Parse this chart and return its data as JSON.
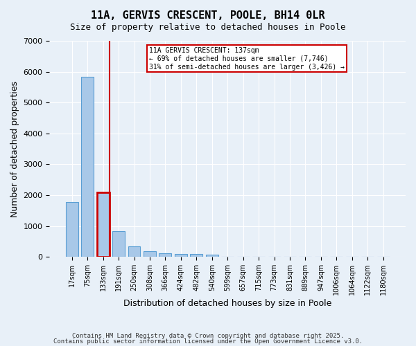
{
  "title_line1": "11A, GERVIS CRESCENT, POOLE, BH14 0LR",
  "title_line2": "Size of property relative to detached houses in Poole",
  "xlabel": "Distribution of detached houses by size in Poole",
  "ylabel": "Number of detached properties",
  "categories": [
    "17sqm",
    "75sqm",
    "133sqm",
    "191sqm",
    "250sqm",
    "308sqm",
    "366sqm",
    "424sqm",
    "482sqm",
    "540sqm",
    "599sqm",
    "657sqm",
    "715sqm",
    "773sqm",
    "831sqm",
    "889sqm",
    "947sqm",
    "1006sqm",
    "1064sqm",
    "1122sqm",
    "1180sqm"
  ],
  "values": [
    1780,
    5830,
    2080,
    830,
    340,
    190,
    115,
    100,
    90,
    65,
    0,
    0,
    0,
    0,
    0,
    0,
    0,
    0,
    0,
    0,
    0
  ],
  "bar_color": "#a8c8e8",
  "bar_edge_color": "#5a9fd4",
  "highlight_bar_index": 2,
  "highlight_color": "#cc0000",
  "ylim": [
    0,
    7000
  ],
  "yticks": [
    0,
    1000,
    2000,
    3000,
    4000,
    5000,
    6000,
    7000
  ],
  "annotation_title": "11A GERVIS CRESCENT: 137sqm",
  "annotation_line2": "← 69% of detached houses are smaller (7,746)",
  "annotation_line3": "31% of semi-detached houses are larger (3,426) →",
  "annotation_box_color": "#cc0000",
  "annotation_fill_color": "#ffffff",
  "background_color": "#e8f0f8",
  "grid_color": "#ffffff",
  "footer_line1": "Contains HM Land Registry data © Crown copyright and database right 2025.",
  "footer_line2": "Contains public sector information licensed under the Open Government Licence v3.0."
}
